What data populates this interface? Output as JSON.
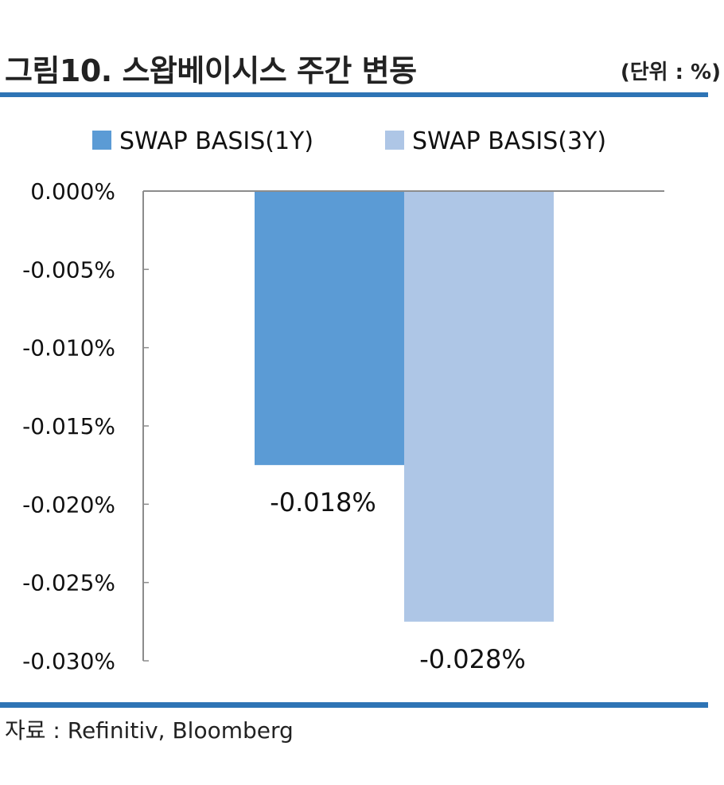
{
  "header": {
    "title": "그림10. 스왑베이시스 주간 변동",
    "unit": "(단위 : %)"
  },
  "footer": {
    "source": "자료 : Refinitiv, Bloomberg"
  },
  "colors": {
    "rule": "#2e74b5",
    "axis": "#8c8c8c"
  },
  "chart_data": {
    "type": "bar",
    "title": "그림10. 스왑베이시스 주간 변동",
    "unit_label": "(단위 : %)",
    "ylim": [
      -0.03,
      0.0
    ],
    "yticks": [
      0.0,
      -0.005,
      -0.01,
      -0.015,
      -0.02,
      -0.025,
      -0.03
    ],
    "ytick_labels": [
      "0.000%",
      "-0.005%",
      "-0.010%",
      "-0.015%",
      "-0.020%",
      "-0.025%",
      "-0.030%"
    ],
    "grid": false,
    "legend_position": "top",
    "series": [
      {
        "name": "SWAP BASIS(1Y)",
        "value": -0.0175,
        "label": "-0.018%",
        "color": "#5b9bd5"
      },
      {
        "name": "SWAP BASIS(3Y)",
        "value": -0.0275,
        "label": "-0.028%",
        "color": "#aec6e6"
      }
    ]
  }
}
